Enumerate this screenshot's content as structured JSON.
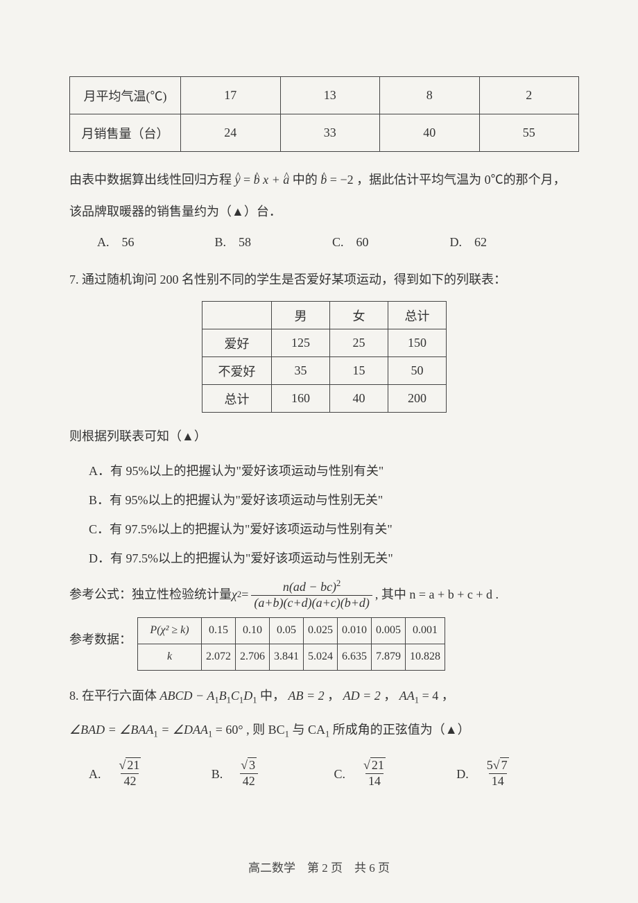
{
  "table1": {
    "row1_label": "月平均气温(℃)",
    "row1_vals": [
      "17",
      "13",
      "8",
      "2"
    ],
    "row2_label": "月销售量（台）",
    "row2_vals": [
      "24",
      "33",
      "40",
      "55"
    ]
  },
  "q6_text1": "由表中数据算出线性回归方程",
  "q6_eq1_y": "y",
  "q6_eq_eq": " = ",
  "q6_eq1_b": "b",
  "q6_eq1_x": "x + ",
  "q6_eq1_a": "a",
  "q6_text2": " 中的 ",
  "q6_eq2_b": "b",
  "q6_eq2_v": " = −2",
  "q6_text3": "，据此估计平均气温为 0℃的那个月，",
  "q6_text4": "该品牌取暖器的销售量约为（▲）台．",
  "q6_optA": "A.　56",
  "q6_optB": "B.　58",
  "q6_optC": "C.　60",
  "q6_optD": "D.　62",
  "q7_stem": "7. 通过随机询问 200 名性别不同的学生是否爱好某项运动，得到如下的列联表：",
  "table2": {
    "h1": "男",
    "h2": "女",
    "h3": "总计",
    "r1_label": "爱好",
    "r1": [
      "125",
      "25",
      "150"
    ],
    "r2_label": "不爱好",
    "r2": [
      "35",
      "15",
      "50"
    ],
    "r3_label": "总计",
    "r3": [
      "160",
      "40",
      "200"
    ]
  },
  "q7_then": "则根据列联表可知（▲）",
  "q7_A": "A．有 95%以上的把握认为\"爱好该项运动与性别有关\"",
  "q7_B": "B．有 95%以上的把握认为\"爱好该项运动与性别无关\"",
  "q7_C": "C．有 97.5%以上的把握认为\"爱好该项运动与性别有关\"",
  "q7_D": "D．有 97.5%以上的把握认为\"爱好该项运动与性别无关\"",
  "formula_prefix": "参考公式：独立性检验统计量 ",
  "formula_chi": "χ",
  "formula_sq": "2",
  "formula_eq": " = ",
  "formula_num": "n(ad − bc)",
  "formula_num_sq": "2",
  "formula_den": "(a+b)(c+d)(a+c)(b+d)",
  "formula_suffix": " , 其中 n = a + b + c + d .",
  "ref_label": "参考数据：",
  "table3": {
    "r1_label": "P(χ² ≥ k)",
    "r1": [
      "0.15",
      "0.10",
      "0.05",
      "0.025",
      "0.010",
      "0.005",
      "0.001"
    ],
    "r2_label": "k",
    "r2": [
      "2.072",
      "2.706",
      "3.841",
      "5.024",
      "6.635",
      "7.879",
      "10.828"
    ]
  },
  "q8_l1a": "8. 在平行六面体 ",
  "q8_l1b": "ABCD − A",
  "q8_l1c": "B",
  "q8_l1d": "C",
  "q8_l1e": "D",
  "q8_l1f": " 中， ",
  "q8_AB": "AB = 2",
  "q8_sep": " ， ",
  "q8_AD": "AD = 2",
  "q8_AA": "AA",
  "q8_AA_v": " = 4 ，",
  "q8_l2a": "∠BAD = ∠BAA",
  "q8_l2b": " = ∠DAA",
  "q8_l2c": " = 60° , 则 BC",
  "q8_l2d": " 与 CA",
  "q8_l2e": " 所成角的正弦值为（▲）",
  "q8_optA_l": "A.　",
  "q8_optA_num": "21",
  "q8_optA_den": "42",
  "q8_optB_l": "B.　",
  "q8_optB_num": "3",
  "q8_optB_den": "42",
  "q8_optC_l": "C.　",
  "q8_optC_num": "21",
  "q8_optC_den": "14",
  "q8_optD_l": "D.　",
  "q8_optD_num_pre": "5",
  "q8_optD_num": "7",
  "q8_optD_den": "14",
  "footer": "高二数学　第 2 页　共 6 页"
}
